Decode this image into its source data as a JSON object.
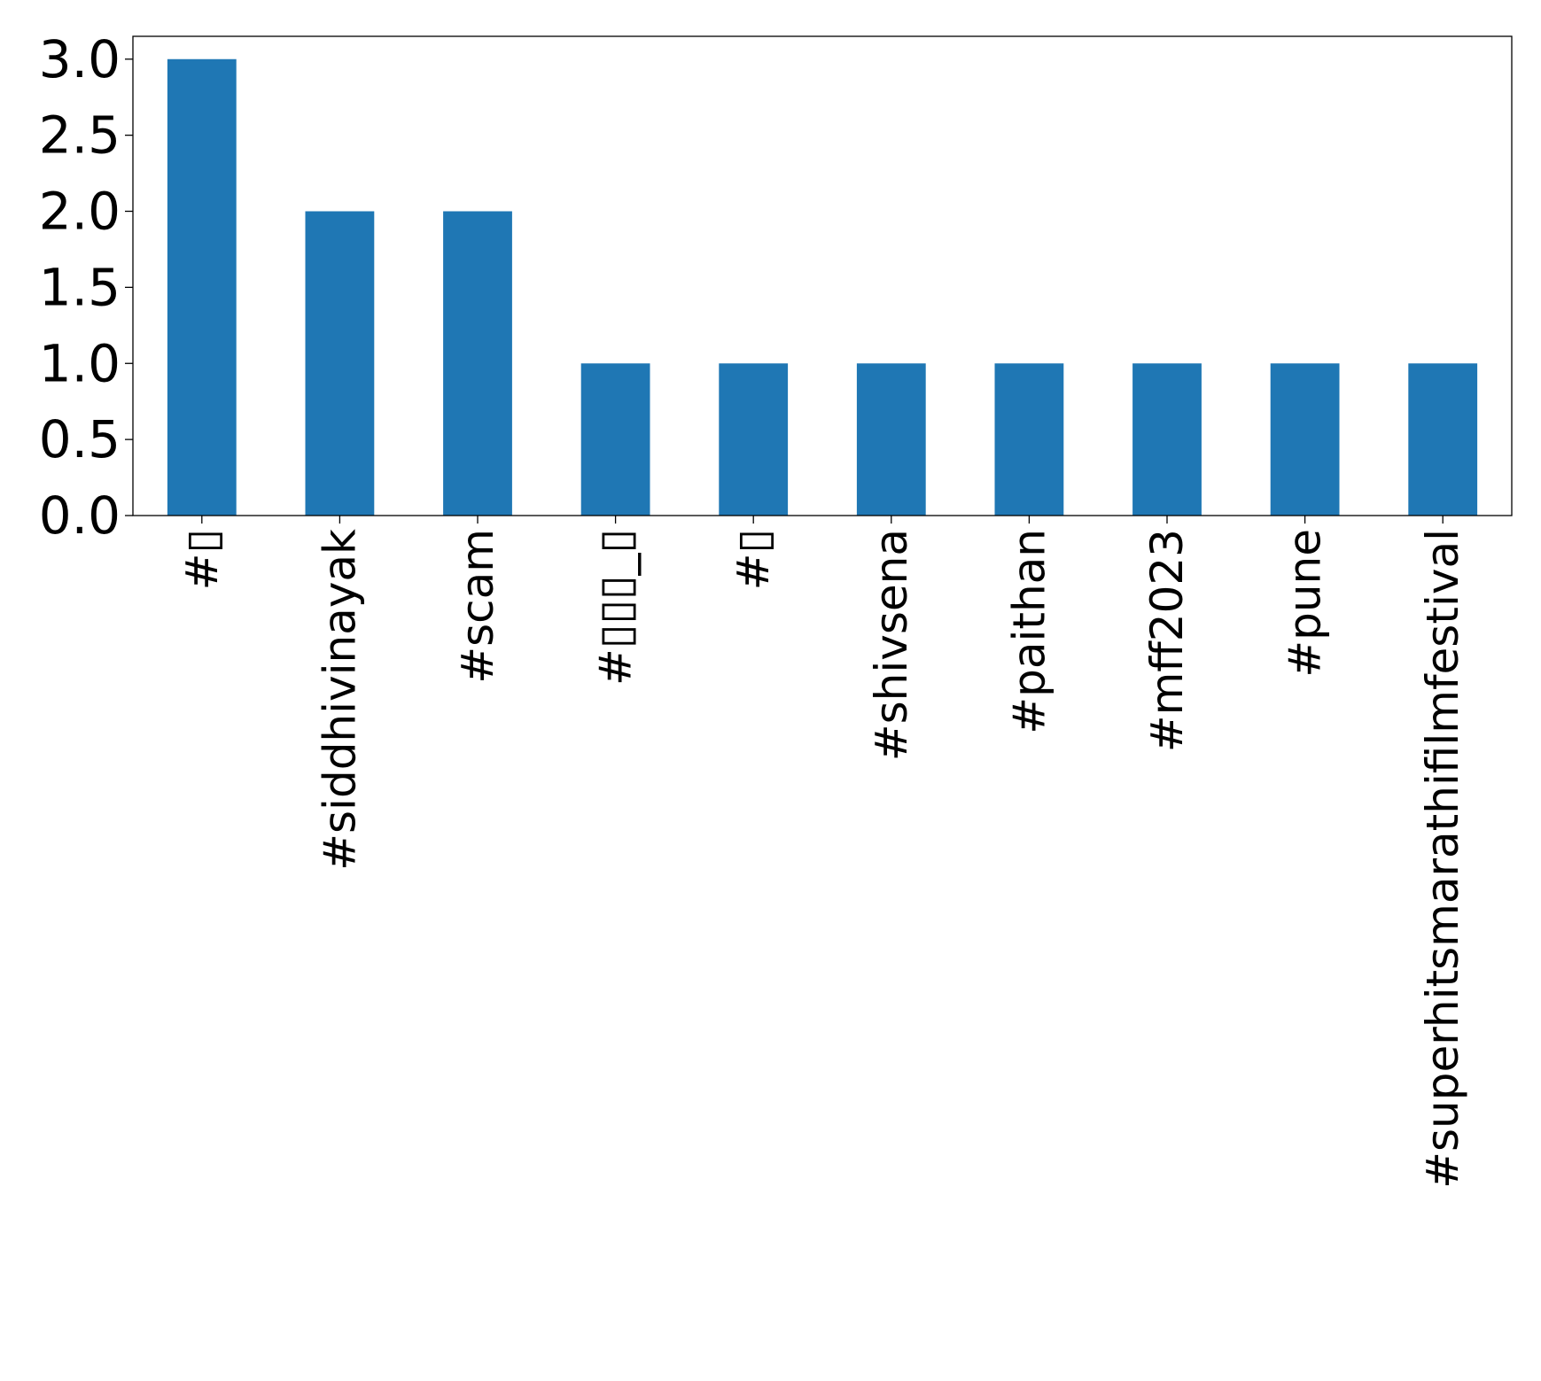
{
  "chart_data": {
    "type": "bar",
    "title": "",
    "xlabel": "",
    "ylabel": "",
    "categories": [
      "#▯",
      "#siddhivinayak",
      "#scam",
      "#▯▯▯_▯",
      "#▯",
      "#shivsena",
      "#paithan",
      "#mff2023",
      "#pune",
      "#superhitsmarathifilmfestival"
    ],
    "values": [
      3,
      2,
      2,
      1,
      1,
      1,
      1,
      1,
      1,
      1
    ],
    "ylim": [
      0,
      3.15
    ],
    "yticks": [
      0.0,
      0.5,
      1.0,
      1.5,
      2.0,
      2.5,
      3.0
    ],
    "ytick_labels": [
      "0.0",
      "0.5",
      "1.0",
      "1.5",
      "2.0",
      "2.5",
      "3.0"
    ],
    "bar_color": "#1f77b4",
    "grid": false,
    "legend": "none"
  }
}
